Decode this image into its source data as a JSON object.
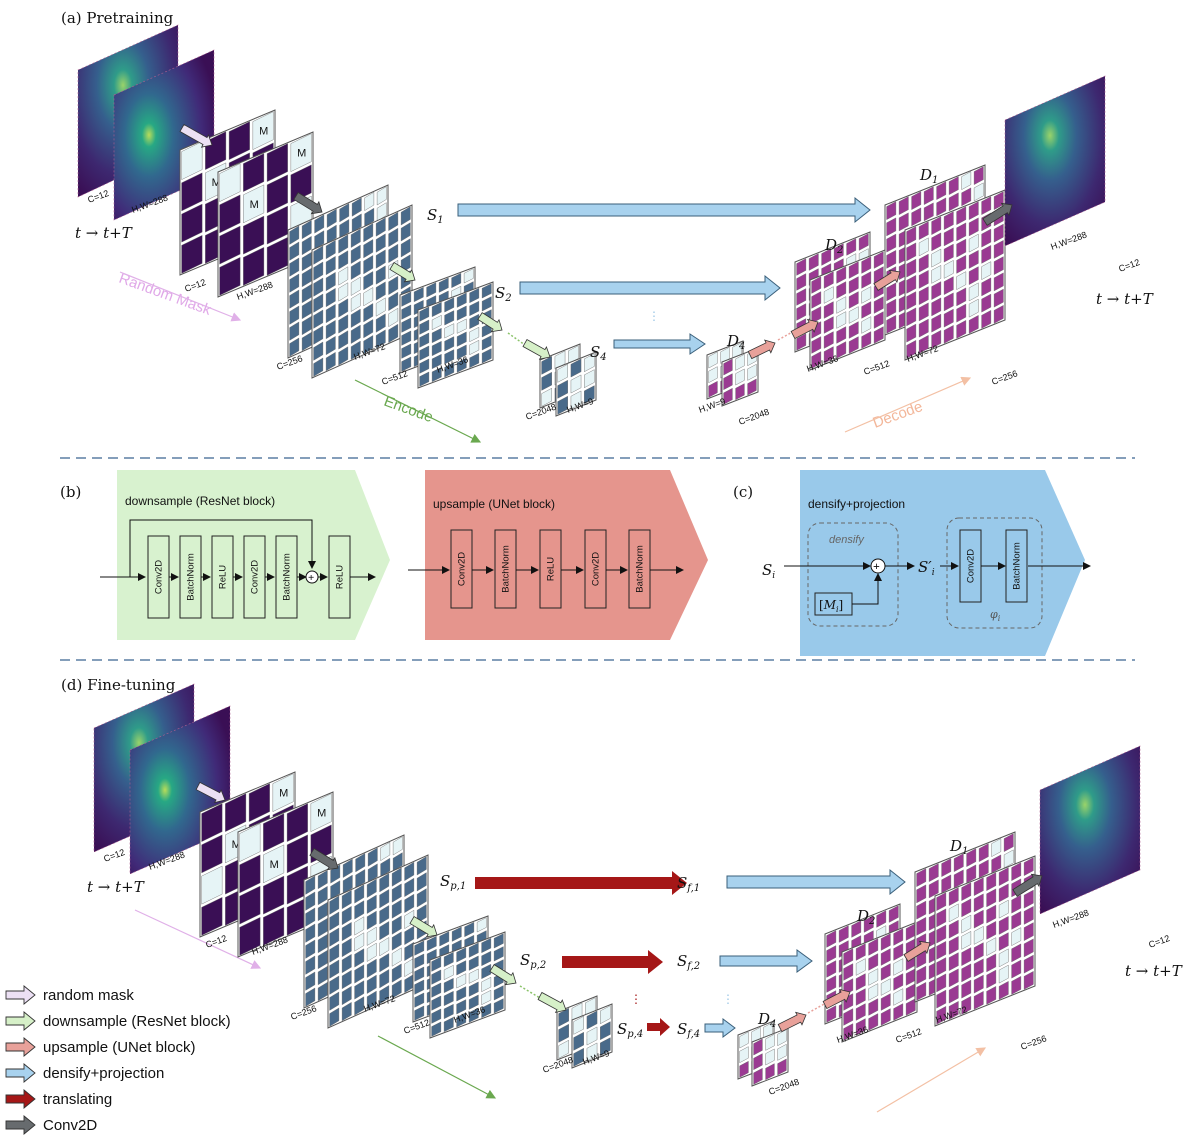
{
  "panels": {
    "a": "(a) Pretraining",
    "b": "(b)",
    "c": "(c)",
    "d": "(d) Fine-tuning"
  },
  "pretraining": {
    "time_in": "t → t+T",
    "time_out": "t → t+T",
    "input_dims": [
      "C=12",
      "H,W=288"
    ],
    "mask_dims": [
      "C=12",
      "H,W=288"
    ],
    "enc1_dims": [
      "C=256",
      "H,W=72"
    ],
    "enc2_dims": [
      "C=512",
      "H,W=36"
    ],
    "enc4_dims": [
      "C=2048",
      "H,W=9"
    ],
    "dec4_dims": [
      "H,W=9",
      "C=2048"
    ],
    "dec2_dims": [
      "H,W=36",
      "C=512"
    ],
    "dec1_dims": [
      "H,W=72",
      "C=256"
    ],
    "output_dims": [
      "H,W=288",
      "C=12"
    ],
    "mask_token": "M",
    "random_mask": "Random Mask",
    "encode": "Encode",
    "decode": "Decode",
    "s1": "S1",
    "s2": "S2",
    "s4": "S4",
    "d1": "D1",
    "d2": "D2",
    "d4": "D4"
  },
  "blocks": {
    "downsample_title": "downsample (ResNet block)",
    "downsample_layers": [
      "Conv2D",
      "BatchNorm",
      "ReLU",
      "Conv2D",
      "BatchNorm",
      "ReLU"
    ],
    "upsample_title": "upsample (UNet block)",
    "upsample_layers": [
      "Conv2D",
      "BatchNorm",
      "ReLU",
      "Conv2D",
      "BatchNorm"
    ],
    "densify_title": "densify+projection",
    "densify_label": "densify",
    "si": "Si",
    "si_prime": "S′i",
    "mask_token": "[Mi]",
    "proj_layers": [
      "Conv2D",
      "BatchNorm"
    ],
    "phi": "φi"
  },
  "finetuning": {
    "time_in": "t → t+T",
    "time_out": "t → t+T",
    "input_dims": [
      "C=12",
      "H,W=288"
    ],
    "mask_dims": [
      "C=12",
      "H,W=288"
    ],
    "enc1_dims": [
      "C=256",
      "H,W=72"
    ],
    "enc2_dims": [
      "C=512",
      "H,W=36"
    ],
    "enc4_dims": [
      "C=2048",
      "H,W=9"
    ],
    "dec4_dims": [
      "C=2048"
    ],
    "dec2_dims": [
      "H,W=36",
      "C=512"
    ],
    "dec1_dims": [
      "H,W=72",
      "C=256"
    ],
    "output_dims": [
      "H,W=288",
      "C=12"
    ],
    "sp1": "Sp,1",
    "sp2": "Sp,2",
    "sp4": "Sp,4",
    "sf1": "Sf,1",
    "sf2": "Sf,2",
    "sf4": "Sf,4",
    "d1": "D1",
    "d2": "D2",
    "d4": "D4"
  },
  "legend": [
    {
      "label": "random mask",
      "color": "#ece0f4"
    },
    {
      "label": "downsample (ResNet block)",
      "color": "#d6f0c8"
    },
    {
      "label": "upsample (UNet block)",
      "color": "#e8a19a"
    },
    {
      "label": "densify+projection",
      "color": "#a8d2ee"
    },
    {
      "label": "translating",
      "color": "#a51717"
    },
    {
      "label": "Conv2D",
      "color": "#676b6e"
    }
  ],
  "colors": {
    "encoder_fill": "#496a8a",
    "decoder_fill": "#9a3a92",
    "mask_cell": "#e6f4f6",
    "heatmap_dark": "#3a0f55",
    "green_panel": "#d8f2cf",
    "red_panel": "#e5958d",
    "blue_panel": "#99c9ea"
  }
}
